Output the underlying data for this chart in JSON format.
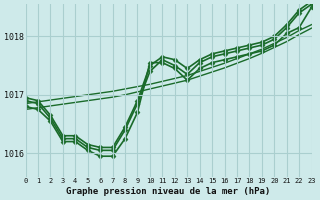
{
  "title": "Graphe pression niveau de la mer (hPa)",
  "bg_color": "#ceeaea",
  "grid_color": "#aacfcf",
  "line_color": "#1a6b2a",
  "x_min": 0,
  "x_max": 23,
  "y_min": 1015.6,
  "y_max": 1018.55,
  "yticks": [
    1016,
    1017,
    1018
  ],
  "xticks": [
    0,
    1,
    2,
    3,
    4,
    5,
    6,
    7,
    8,
    9,
    10,
    11,
    12,
    13,
    14,
    15,
    16,
    17,
    18,
    19,
    20,
    21,
    22,
    23
  ],
  "series": [
    {
      "x": [
        0,
        1,
        2,
        3,
        4,
        5,
        6,
        7,
        8,
        9,
        10,
        11,
        12,
        13,
        14,
        15,
        16,
        17,
        18,
        19,
        20,
        21,
        22,
        23
      ],
      "y": [
        1016.85,
        1016.88,
        1016.91,
        1016.94,
        1016.97,
        1017.0,
        1017.03,
        1017.06,
        1017.1,
        1017.14,
        1017.18,
        1017.23,
        1017.28,
        1017.33,
        1017.4,
        1017.47,
        1017.54,
        1017.62,
        1017.7,
        1017.78,
        1017.88,
        1017.98,
        1018.1,
        1018.2
      ],
      "marker": null,
      "markersize": 0,
      "linewidth": 1.0
    },
    {
      "x": [
        0,
        1,
        2,
        3,
        4,
        5,
        6,
        7,
        8,
        9,
        10,
        11,
        12,
        13,
        14,
        15,
        16,
        17,
        18,
        19,
        20,
        21,
        22,
        23
      ],
      "y": [
        1016.75,
        1016.78,
        1016.81,
        1016.84,
        1016.87,
        1016.9,
        1016.93,
        1016.96,
        1017.0,
        1017.05,
        1017.1,
        1017.15,
        1017.2,
        1017.25,
        1017.32,
        1017.39,
        1017.46,
        1017.54,
        1017.62,
        1017.71,
        1017.81,
        1017.91,
        1018.03,
        1018.14
      ],
      "marker": null,
      "markersize": 0,
      "linewidth": 1.0
    },
    {
      "x": [
        0,
        1,
        2,
        3,
        4,
        5,
        6,
        7,
        8,
        9,
        10,
        11,
        12,
        13,
        14,
        15,
        16,
        17,
        18,
        19,
        20,
        21,
        22,
        23
      ],
      "y": [
        1016.8,
        1016.75,
        1016.55,
        1016.2,
        1016.2,
        1016.05,
        1015.95,
        1015.95,
        1016.25,
        1016.7,
        1017.55,
        1017.55,
        1017.45,
        1017.25,
        1017.45,
        1017.55,
        1017.6,
        1017.65,
        1017.7,
        1017.75,
        1017.85,
        1018.05,
        1018.15,
        1018.5
      ],
      "marker": "D",
      "markersize": 2.5,
      "linewidth": 1.2
    },
    {
      "x": [
        0,
        1,
        2,
        3,
        4,
        5,
        6,
        7,
        8,
        9,
        10,
        11,
        12,
        13,
        14,
        15,
        16,
        17,
        18,
        19,
        20,
        21,
        22,
        23
      ],
      "y": [
        1016.9,
        1016.85,
        1016.6,
        1016.25,
        1016.25,
        1016.1,
        1016.05,
        1016.05,
        1016.4,
        1016.85,
        1017.4,
        1017.6,
        1017.5,
        1017.35,
        1017.55,
        1017.65,
        1017.7,
        1017.75,
        1017.8,
        1017.85,
        1017.95,
        1018.15,
        1018.4,
        1018.55
      ],
      "marker": "D",
      "markersize": 2.5,
      "linewidth": 1.2
    },
    {
      "x": [
        0,
        1,
        2,
        3,
        4,
        5,
        6,
        7,
        8,
        9,
        10,
        11,
        12,
        13,
        14,
        15,
        16,
        17,
        18,
        19,
        20,
        21,
        22,
        23
      ],
      "y": [
        1016.95,
        1016.9,
        1016.65,
        1016.3,
        1016.3,
        1016.15,
        1016.1,
        1016.1,
        1016.45,
        1016.9,
        1017.5,
        1017.65,
        1017.6,
        1017.45,
        1017.6,
        1017.7,
        1017.75,
        1017.8,
        1017.85,
        1017.9,
        1018.0,
        1018.2,
        1018.45,
        1018.6
      ],
      "marker": "D",
      "markersize": 2.5,
      "linewidth": 1.2
    }
  ]
}
